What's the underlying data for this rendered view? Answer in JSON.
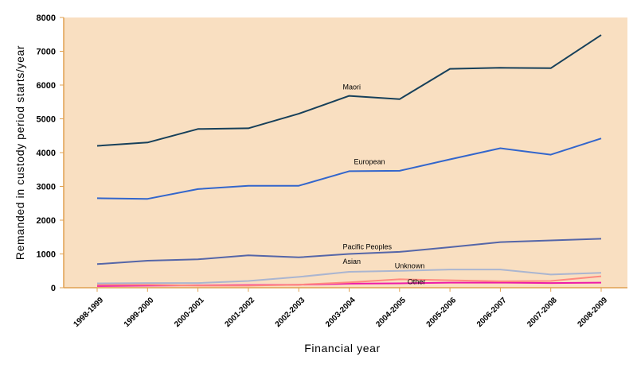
{
  "chart_data": {
    "type": "line",
    "title": "",
    "xlabel": "Financial year",
    "ylabel": "Remanded in custody period starts/year",
    "categories": [
      "1998-1999",
      "1999-2000",
      "2000-2001",
      "2001-2002",
      "2002-2003",
      "2003-2004",
      "2004-2005",
      "2005-2006",
      "2006-2007",
      "2007-2008",
      "2008-2009"
    ],
    "ylim": [
      0,
      8000
    ],
    "yticks": [
      "0",
      "1000",
      "2000",
      "3000",
      "4000",
      "5000",
      "6000",
      "7000",
      "8000"
    ],
    "grid": false,
    "legend": "inline labels",
    "plot_background": "#f9dfc1",
    "axis_color": "#e0a050",
    "series": [
      {
        "name": "Maori",
        "color": "#17405a",
        "values": [
          4200,
          4300,
          4700,
          4720,
          5150,
          5680,
          5580,
          6480,
          6510,
          6500,
          7480
        ]
      },
      {
        "name": "European",
        "color": "#3366cc",
        "values": [
          2650,
          2630,
          2920,
          3020,
          3020,
          3450,
          3460,
          3800,
          4130,
          3940,
          4420
        ]
      },
      {
        "name": "Pacific Peoples",
        "color": "#5566a8",
        "values": [
          700,
          800,
          840,
          960,
          900,
          1000,
          1060,
          1200,
          1350,
          1400,
          1450
        ]
      },
      {
        "name": "Asian",
        "color": "#aab5d0",
        "values": [
          130,
          140,
          140,
          200,
          320,
          470,
          500,
          540,
          540,
          390,
          440
        ]
      },
      {
        "name": "Unknown",
        "color": "#ff8a80",
        "values": [
          90,
          90,
          60,
          60,
          90,
          160,
          250,
          220,
          190,
          200,
          340
        ]
      },
      {
        "name": "Other",
        "color": "#ee1ca8",
        "values": [
          50,
          60,
          70,
          80,
          90,
          120,
          130,
          150,
          150,
          140,
          150
        ]
      }
    ]
  }
}
